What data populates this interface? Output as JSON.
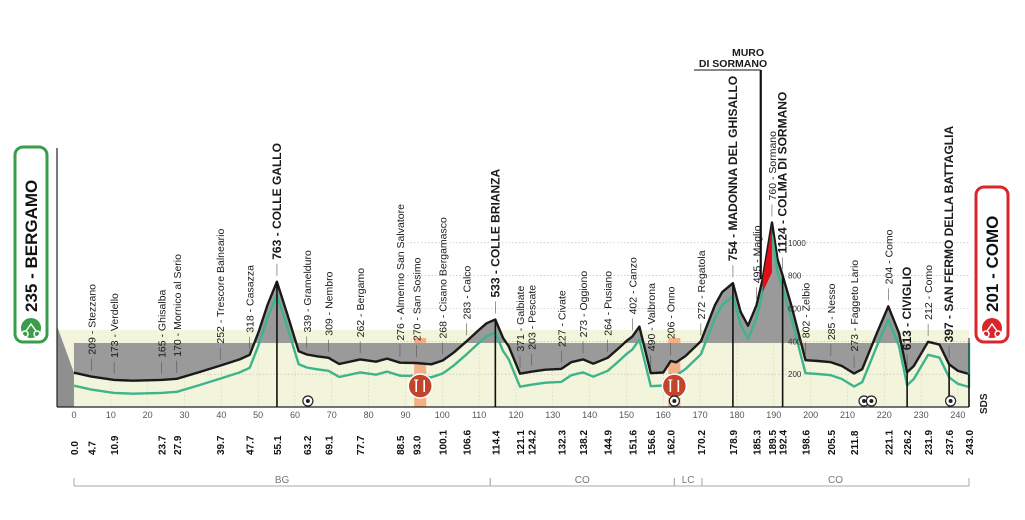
{
  "chart_data": {
    "type": "area",
    "title": "",
    "xlabel": "",
    "ylabel": "",
    "xlim": [
      0,
      243
    ],
    "ylim": [
      0,
      1200
    ],
    "elevation_ticks": [
      200,
      400,
      600,
      800,
      1000
    ],
    "grid": true,
    "profile": [
      [
        0,
        209
      ],
      [
        4.7,
        185
      ],
      [
        10.9,
        165
      ],
      [
        16,
        160
      ],
      [
        23.7,
        165
      ],
      [
        27.9,
        172
      ],
      [
        33.7,
        210
      ],
      [
        39.7,
        252
      ],
      [
        45,
        290
      ],
      [
        47.7,
        318
      ],
      [
        50,
        450
      ],
      [
        52.5,
        620
      ],
      [
        55.1,
        763
      ],
      [
        58,
        560
      ],
      [
        61,
        339
      ],
      [
        63.2,
        320
      ],
      [
        66,
        309
      ],
      [
        69.1,
        300
      ],
      [
        72,
        262
      ],
      [
        77.7,
        290
      ],
      [
        82,
        276
      ],
      [
        85,
        295
      ],
      [
        88.5,
        270
      ],
      [
        93,
        268
      ],
      [
        97,
        260
      ],
      [
        100.1,
        283
      ],
      [
        103,
        330
      ],
      [
        106.6,
        400
      ],
      [
        110,
        470
      ],
      [
        112,
        510
      ],
      [
        114.4,
        533
      ],
      [
        116.5,
        420
      ],
      [
        118,
        371
      ],
      [
        121.1,
        203
      ],
      [
        124.2,
        215
      ],
      [
        128,
        227
      ],
      [
        132.3,
        232
      ],
      [
        135,
        273
      ],
      [
        138.2,
        290
      ],
      [
        141,
        264
      ],
      [
        144.9,
        300
      ],
      [
        148,
        360
      ],
      [
        150,
        402
      ],
      [
        151.6,
        430
      ],
      [
        153.5,
        490
      ],
      [
        156.6,
        206
      ],
      [
        160,
        210
      ],
      [
        162,
        280
      ],
      [
        163.5,
        272
      ],
      [
        166,
        310
      ],
      [
        170.2,
        400
      ],
      [
        174,
        620
      ],
      [
        176,
        700
      ],
      [
        178.9,
        754
      ],
      [
        181,
        580
      ],
      [
        183,
        495
      ],
      [
        185.3,
        620
      ],
      [
        187,
        780
      ],
      [
        189.5,
        1124
      ],
      [
        191,
        900
      ],
      [
        192.4,
        802
      ],
      [
        195,
        600
      ],
      [
        198.6,
        285
      ],
      [
        202,
        280
      ],
      [
        205.5,
        273
      ],
      [
        208.5,
        250
      ],
      [
        211.8,
        204
      ],
      [
        214,
        230
      ],
      [
        218,
        450
      ],
      [
        221.1,
        613
      ],
      [
        224,
        450
      ],
      [
        226.2,
        212
      ],
      [
        228,
        250
      ],
      [
        231.9,
        397
      ],
      [
        235,
        380
      ],
      [
        237.6,
        260
      ],
      [
        240,
        220
      ],
      [
        243,
        201
      ]
    ],
    "km_markers": [
      0,
      10,
      20,
      30,
      40,
      50,
      60,
      70,
      80,
      90,
      100,
      110,
      120,
      130,
      140,
      150,
      160,
      170,
      180,
      190,
      200,
      210,
      220,
      230,
      240
    ],
    "waypoints": [
      {
        "km": 4.7,
        "km_label": "4.7",
        "label": "209 - Stezzano",
        "bold": false
      },
      {
        "km": 10.9,
        "km_label": "10.9",
        "label": "173 - Verdello",
        "bold": false
      },
      {
        "km": 23.7,
        "km_label": "23.7",
        "label": "165 - Ghisalba",
        "bold": false
      },
      {
        "km": 27.9,
        "km_label": "27.9",
        "label": "170 - Mornico al Serio",
        "bold": false
      },
      {
        "km": 39.7,
        "km_label": "39.7",
        "label": "252 - Trescore Balneario",
        "bold": false
      },
      {
        "km": 47.7,
        "km_label": "47.7",
        "label": "318 - Casazza",
        "bold": false
      },
      {
        "km": 55.1,
        "km_label": "55.1",
        "label": "763 - COLLE GALLO",
        "bold": true
      },
      {
        "km": 63.2,
        "km_label": "63.2",
        "label": "339 - Gramelduro",
        "bold": false
      },
      {
        "km": 69.1,
        "km_label": "69.1",
        "label": "309 - Nembro",
        "bold": false
      },
      {
        "km": 77.7,
        "km_label": "77.7",
        "label": "262 - Bergamo",
        "bold": false
      },
      {
        "km": 88.5,
        "km_label": "88.5",
        "label": "276 - Almenno San Salvatore",
        "bold": false
      },
      {
        "km": 93.0,
        "km_label": "93.0",
        "label": "270 - San Sosimo",
        "bold": false
      },
      {
        "km": 100.1,
        "km_label": "100.1",
        "label": "268 - Cisano Bergamasco",
        "bold": false
      },
      {
        "km": 106.6,
        "km_label": "106.6",
        "label": "283 - Calco",
        "bold": false
      },
      {
        "km": 114.4,
        "km_label": "114.4",
        "label": "533 - COLLE BRIANZA",
        "bold": true
      },
      {
        "km": 121.1,
        "km_label": "121.1",
        "label": "371 - Galbiate",
        "bold": false
      },
      {
        "km": 124.2,
        "km_label": "124.2",
        "label": "203 - Pescate",
        "bold": false
      },
      {
        "km": 132.3,
        "km_label": "132.3",
        "label": "227 - Civate",
        "bold": false
      },
      {
        "km": 138.2,
        "km_label": "138.2",
        "label": "273 - Oggiono",
        "bold": false
      },
      {
        "km": 144.9,
        "km_label": "144.9",
        "label": "264 - Pusiano",
        "bold": false
      },
      {
        "km": 151.6,
        "km_label": "151.6",
        "label": "402 - Canzo",
        "bold": false
      },
      {
        "km": 156.6,
        "km_label": "156.6",
        "label": "490 - Valbrona",
        "bold": false
      },
      {
        "km": 162.0,
        "km_label": "162.0",
        "label": "206 - Onno",
        "bold": false
      },
      {
        "km": 170.2,
        "km_label": "170.2",
        "label": "272 - Regatola",
        "bold": false
      },
      {
        "km": 178.9,
        "km_label": "178.9",
        "label": "754 - MADONNA DEL GHISALLO",
        "bold": true
      },
      {
        "km": 185.3,
        "km_label": "185.3",
        "label": "495 - Maglio",
        "bold": false
      },
      {
        "km": 189.5,
        "km_label": "189.5",
        "label": "760 - Sormano",
        "bold": false
      },
      {
        "km": 192.4,
        "km_label": "192.4",
        "label": "1124 - COLMA DI SORMANO",
        "bold": true
      },
      {
        "km": 198.6,
        "km_label": "198.6",
        "label": "802 - Zelbio",
        "bold": false
      },
      {
        "km": 205.5,
        "km_label": "205.5",
        "label": "285 - Nesso",
        "bold": false
      },
      {
        "km": 211.8,
        "km_label": "211.8",
        "label": "273 - Faggeto Lario",
        "bold": false
      },
      {
        "km": 221.1,
        "km_label": "221.1",
        "label": "204 - Como",
        "bold": false
      },
      {
        "km": 226.2,
        "km_label": "226.2",
        "label": "613 - CIVIGLIO",
        "bold": true
      },
      {
        "km": 231.9,
        "km_label": "231.9",
        "label": "212 - Como",
        "bold": false
      },
      {
        "km": 237.6,
        "km_label": "237.6",
        "label": "397 - SAN FERMO DELLA BATTAGLIA",
        "bold": true
      },
      {
        "km": 243.0,
        "km_label": "243.0",
        "label": "",
        "bold": true
      }
    ],
    "start": {
      "km_label": "0.0",
      "label": "235 - BERGAMO"
    },
    "finish": {
      "label": "201 - COMO"
    },
    "special_climb": {
      "label_line1": "MURO",
      "label_line2": "DI SORMANO",
      "km_start": 187,
      "km_end": 189.5
    },
    "feed_zones": [
      94,
      163
    ],
    "sprint_markers": [
      63.5,
      163,
      214.5,
      216.5,
      238
    ],
    "regions": [
      {
        "label": "BG",
        "km_start": 0,
        "km_end": 113
      },
      {
        "label": "CO",
        "km_start": 113,
        "km_end": 163
      },
      {
        "label": "LC",
        "km_start": 163,
        "km_end": 170.5
      },
      {
        "label": "CO",
        "km_start": 170.5,
        "km_end": 243
      }
    ],
    "logo_text": "SDS",
    "colors": {
      "profile_fill": "#9a9a9a",
      "ground_fill": "#f3f4dc",
      "route_line": "#3eb48a",
      "start_badge": "#3a9d4a",
      "finish_badge": "#d8262a",
      "feed_zone": "#f2a275",
      "feed_icon": "#c4432b",
      "special_climb": "#e10e16"
    }
  }
}
